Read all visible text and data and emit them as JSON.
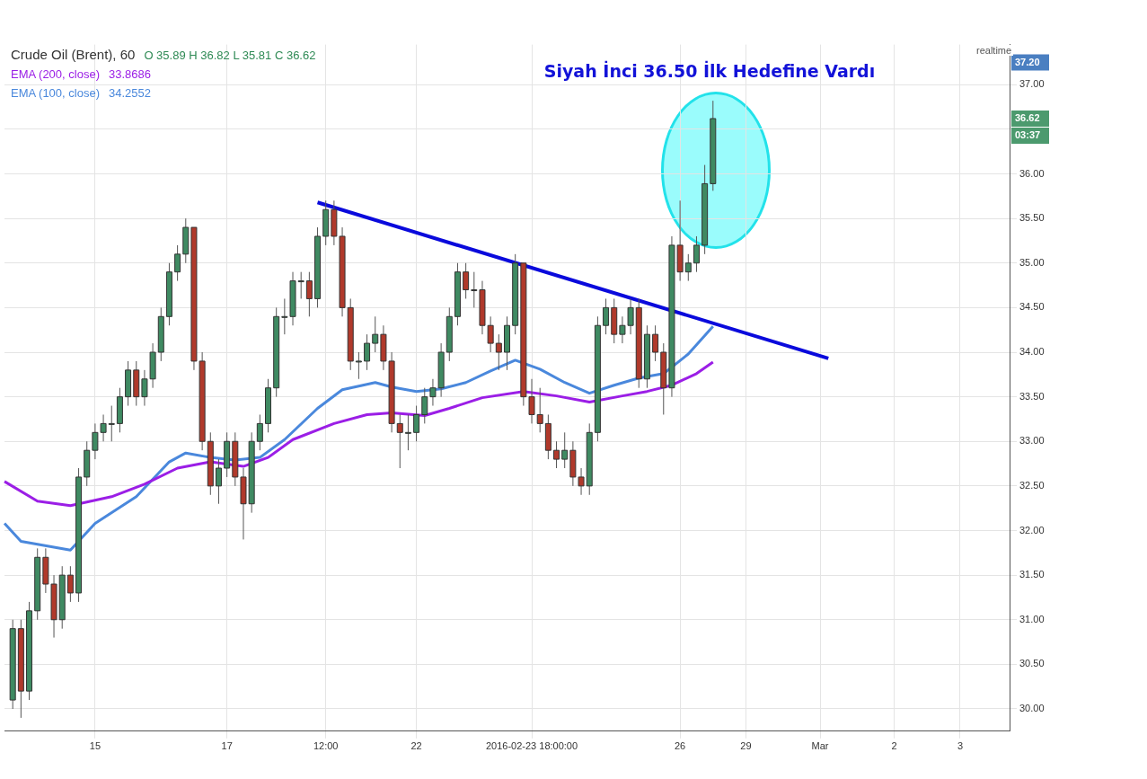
{
  "chart_data": {
    "type": "candlestick",
    "title": "Siyah İnci 36.50 İlk Hedefine Vardı",
    "subtitle": "Crude Oil (Brent), 60",
    "categories": [
      null,
      null,
      null,
      null,
      null,
      null,
      null,
      null,
      null,
      null,
      null,
      "15",
      null,
      null,
      null,
      null,
      null,
      null,
      null,
      null,
      null,
      null,
      null,
      null,
      null,
      null,
      null,
      "17",
      null,
      null,
      null,
      null,
      null,
      null,
      null,
      null,
      null,
      null,
      null,
      "12:00",
      null,
      null,
      null,
      null,
      null,
      null,
      null,
      null,
      null,
      null,
      "22",
      null,
      null,
      null,
      null,
      null,
      null,
      null,
      null,
      null,
      null,
      null,
      null,
      null,
      "2016-02-23 18:00:00",
      null,
      null,
      null,
      null,
      null,
      null,
      null,
      null,
      null,
      null,
      null,
      null,
      null,
      null,
      null,
      null,
      null,
      "26",
      null,
      null,
      null,
      null,
      null,
      null,
      null,
      "29",
      null,
      null,
      null,
      null,
      null,
      null,
      null,
      null,
      "Mar",
      null,
      null,
      null,
      null,
      null,
      null,
      null,
      null,
      "2",
      null,
      null,
      null,
      null,
      null,
      null,
      null,
      "3",
      null,
      null,
      null,
      null,
      null,
      null
    ],
    "ohlc": [
      null,
      [
        30.1,
        31.0,
        30.0,
        30.9
      ],
      [
        30.9,
        31.0,
        29.9,
        30.2
      ],
      [
        30.2,
        31.2,
        30.1,
        31.1
      ],
      [
        31.1,
        31.8,
        31.0,
        31.7
      ],
      [
        31.7,
        31.8,
        31.3,
        31.4
      ],
      [
        31.4,
        31.5,
        30.8,
        31.0
      ],
      [
        31.0,
        31.6,
        30.9,
        31.5
      ],
      [
        31.5,
        31.6,
        31.2,
        31.3
      ],
      [
        31.3,
        32.7,
        31.2,
        32.6
      ],
      [
        32.6,
        33.0,
        32.5,
        32.9
      ],
      [
        32.9,
        33.2,
        32.8,
        33.1
      ],
      [
        33.1,
        33.3,
        33.0,
        33.2
      ],
      [
        33.2,
        33.4,
        33.0,
        33.2
      ],
      [
        33.2,
        33.6,
        33.1,
        33.5
      ],
      [
        33.5,
        33.9,
        33.4,
        33.8
      ],
      [
        33.8,
        33.9,
        33.4,
        33.5
      ],
      [
        33.5,
        33.8,
        33.4,
        33.7
      ],
      [
        33.7,
        34.1,
        33.6,
        34.0
      ],
      [
        34.0,
        34.5,
        33.9,
        34.4
      ],
      [
        34.4,
        35.0,
        34.3,
        34.9
      ],
      [
        34.9,
        35.2,
        34.8,
        35.1
      ],
      [
        35.1,
        35.5,
        35.0,
        35.4
      ],
      [
        35.4,
        35.4,
        33.8,
        33.9
      ],
      [
        33.9,
        34.0,
        32.9,
        33.0
      ],
      [
        33.0,
        33.1,
        32.4,
        32.5
      ],
      [
        32.5,
        32.8,
        32.3,
        32.7
      ],
      [
        32.7,
        33.1,
        32.6,
        33.0
      ],
      [
        33.0,
        33.1,
        32.5,
        32.6
      ],
      [
        32.6,
        32.7,
        31.9,
        32.3
      ],
      [
        32.3,
        33.1,
        32.2,
        33.0
      ],
      [
        33.0,
        33.3,
        32.9,
        33.2
      ],
      [
        33.2,
        33.7,
        33.1,
        33.6
      ],
      [
        33.6,
        34.5,
        33.5,
        34.4
      ],
      [
        34.4,
        34.6,
        34.2,
        34.4
      ],
      [
        34.4,
        34.9,
        34.3,
        34.8
      ],
      [
        34.8,
        34.9,
        34.6,
        34.8
      ],
      [
        34.8,
        34.9,
        34.4,
        34.6
      ],
      [
        34.6,
        35.4,
        34.5,
        35.3
      ],
      [
        35.3,
        35.7,
        35.2,
        35.6
      ],
      [
        35.6,
        35.7,
        35.2,
        35.3
      ],
      [
        35.3,
        35.4,
        34.4,
        34.5
      ],
      [
        34.5,
        34.6,
        33.8,
        33.9
      ],
      [
        33.9,
        34.0,
        33.7,
        33.9
      ],
      [
        33.9,
        34.2,
        33.8,
        34.1
      ],
      [
        34.1,
        34.4,
        34.0,
        34.2
      ],
      [
        34.2,
        34.3,
        33.8,
        33.9
      ],
      [
        33.9,
        34.0,
        33.1,
        33.2
      ],
      [
        33.2,
        33.3,
        32.7,
        33.1
      ],
      [
        33.1,
        33.3,
        32.9,
        33.1
      ],
      [
        33.1,
        33.4,
        33.0,
        33.3
      ],
      [
        33.3,
        33.6,
        33.2,
        33.5
      ],
      [
        33.5,
        33.7,
        33.4,
        33.6
      ],
      [
        33.6,
        34.1,
        33.5,
        34.0
      ],
      [
        34.0,
        34.5,
        33.9,
        34.4
      ],
      [
        34.4,
        35.0,
        34.3,
        34.9
      ],
      [
        34.9,
        35.0,
        34.6,
        34.7
      ],
      [
        34.7,
        34.9,
        34.5,
        34.7
      ],
      [
        34.7,
        34.8,
        34.2,
        34.3
      ],
      [
        34.3,
        34.4,
        34.0,
        34.1
      ],
      [
        34.1,
        34.2,
        33.8,
        34.0
      ],
      [
        34.0,
        34.4,
        33.8,
        34.3
      ],
      [
        34.3,
        35.1,
        34.2,
        35.0
      ],
      [
        35.0,
        35.0,
        33.4,
        33.5
      ],
      [
        33.5,
        33.7,
        33.2,
        33.3
      ],
      [
        33.3,
        33.6,
        33.1,
        33.2
      ],
      [
        33.2,
        33.3,
        32.8,
        32.9
      ],
      [
        32.9,
        33.0,
        32.7,
        32.8
      ],
      [
        32.8,
        33.1,
        32.7,
        32.9
      ],
      [
        32.9,
        33.0,
        32.5,
        32.6
      ],
      [
        32.6,
        32.7,
        32.4,
        32.5
      ],
      [
        32.5,
        33.2,
        32.4,
        33.1
      ],
      [
        33.1,
        34.4,
        33.0,
        34.3
      ],
      [
        34.3,
        34.6,
        34.2,
        34.5
      ],
      [
        34.5,
        34.6,
        34.1,
        34.2
      ],
      [
        34.2,
        34.4,
        34.1,
        34.3
      ],
      [
        34.3,
        34.6,
        34.2,
        34.5
      ],
      [
        34.5,
        34.6,
        33.6,
        33.7
      ],
      [
        33.7,
        34.3,
        33.6,
        34.2
      ],
      [
        34.2,
        34.3,
        33.9,
        34.0
      ],
      [
        34.0,
        34.1,
        33.3,
        33.6
      ],
      [
        33.6,
        35.3,
        33.5,
        35.2
      ],
      [
        35.2,
        35.7,
        34.8,
        34.9
      ],
      [
        34.9,
        35.1,
        34.8,
        35.0
      ],
      [
        35.0,
        35.3,
        34.9,
        35.2
      ],
      [
        35.2,
        36.1,
        35.1,
        35.89
      ],
      [
        35.89,
        36.82,
        35.81,
        36.62
      ],
      null,
      null,
      null,
      null,
      null,
      null,
      null,
      null,
      null,
      null,
      null,
      null,
      null,
      null,
      null,
      null,
      null,
      null,
      null,
      null,
      null,
      null,
      null,
      null,
      null,
      null,
      null,
      null,
      null,
      null,
      null,
      null,
      null,
      null,
      null,
      null
    ],
    "series": [
      {
        "name": "EMA (200, close)",
        "type": "line",
        "color": "#9b1ee6",
        "values": [
          32.55,
          null,
          null,
          null,
          32.33,
          null,
          null,
          null,
          32.28,
          null,
          null,
          null,
          null,
          32.38,
          null,
          null,
          null,
          32.52,
          null,
          null,
          null,
          32.7,
          null,
          null,
          null,
          32.77,
          null,
          null,
          null,
          32.72,
          null,
          null,
          32.82,
          null,
          null,
          33.02,
          null,
          null,
          null,
          null,
          33.2,
          null,
          null,
          null,
          33.3,
          null,
          null,
          33.32,
          null,
          null,
          null,
          33.29,
          null,
          null,
          33.37,
          null,
          null,
          null,
          33.49,
          null,
          null,
          null,
          null,
          33.56,
          null,
          null,
          null,
          33.51,
          null,
          null,
          null,
          33.44,
          null,
          null,
          null,
          33.51,
          null,
          null,
          33.56,
          null,
          null,
          33.63,
          null,
          null,
          33.76,
          null,
          33.89,
          null,
          null,
          null,
          null,
          null,
          null,
          null,
          null,
          null,
          null,
          null,
          null,
          null,
          null,
          null,
          null,
          null,
          null,
          null,
          null,
          null,
          null,
          null,
          null,
          null,
          null,
          null,
          null,
          null,
          null,
          null,
          null,
          null,
          null,
          null,
          null
        ]
      },
      {
        "name": "EMA (100, close)",
        "type": "line",
        "color": "#4a88dc",
        "values": [
          32.08,
          null,
          31.88,
          null,
          null,
          null,
          null,
          null,
          31.78,
          null,
          null,
          32.08,
          null,
          null,
          null,
          null,
          32.38,
          null,
          null,
          null,
          32.77,
          null,
          32.87,
          null,
          null,
          32.82,
          null,
          null,
          32.79,
          null,
          null,
          32.82,
          null,
          null,
          33.02,
          null,
          null,
          null,
          33.37,
          null,
          null,
          33.58,
          null,
          null,
          null,
          33.66,
          null,
          33.61,
          null,
          null,
          33.56,
          null,
          null,
          33.59,
          null,
          null,
          33.66,
          null,
          null,
          33.79,
          null,
          null,
          33.91,
          null,
          null,
          33.81,
          null,
          null,
          33.66,
          null,
          null,
          33.54,
          null,
          null,
          33.63,
          null,
          null,
          33.71,
          null,
          null,
          33.76,
          null,
          null,
          33.98,
          null,
          null,
          34.29,
          null,
          null,
          null,
          null,
          null,
          null,
          null,
          null,
          null,
          null,
          null,
          null,
          null,
          null,
          null,
          null,
          null,
          null,
          null,
          null,
          null,
          null,
          null,
          null,
          null,
          null,
          null,
          null,
          null,
          null,
          null,
          null,
          null,
          null,
          null,
          null
        ]
      },
      {
        "type": "line",
        "color": "#0a0adc",
        "values": [
          null,
          null,
          null,
          null,
          null,
          null,
          null,
          null,
          null,
          null,
          null,
          null,
          null,
          null,
          null,
          null,
          null,
          null,
          null,
          null,
          null,
          null,
          null,
          null,
          null,
          null,
          null,
          null,
          null,
          null,
          null,
          null,
          null,
          null,
          null,
          null,
          null,
          null,
          35.68,
          null,
          null,
          null,
          null,
          null,
          null,
          null,
          null,
          null,
          null,
          null,
          null,
          null,
          null,
          null,
          null,
          null,
          null,
          null,
          null,
          null,
          null,
          null,
          null,
          null,
          null,
          null,
          null,
          null,
          null,
          null,
          null,
          null,
          null,
          null,
          null,
          null,
          null,
          null,
          null,
          null,
          null,
          null,
          null,
          null,
          null,
          null,
          null,
          null,
          null,
          null,
          null,
          null,
          null,
          null,
          null,
          null,
          null,
          null,
          null,
          null,
          33.93,
          null,
          null,
          null,
          null,
          null,
          null,
          null,
          null,
          null,
          null,
          null,
          null,
          null,
          null,
          null,
          null,
          null,
          null,
          null,
          null,
          null,
          null
        ]
      }
    ],
    "ylim": [
      29.75,
      37.45
    ],
    "yticks": [
      {
        "value": 30,
        "label": "30.00"
      },
      {
        "value": 30.5,
        "label": "30.50"
      },
      {
        "value": 31,
        "label": "31.00"
      },
      {
        "value": 31.5,
        "label": "31.50"
      },
      {
        "value": 32,
        "label": "32.00"
      },
      {
        "value": 32.5,
        "label": "32.50"
      },
      {
        "value": 33,
        "label": "33.00"
      },
      {
        "value": 33.5,
        "label": "33.50"
      },
      {
        "value": 34,
        "label": "34.00"
      },
      {
        "value": 34.5,
        "label": "34.50"
      },
      {
        "value": 35,
        "label": "35.00"
      },
      {
        "value": 35.5,
        "label": "35.50"
      },
      {
        "value": 36,
        "label": "36.00"
      },
      {
        "value": 36.5,
        "label": null
      },
      {
        "value": 37,
        "label": "37.00"
      }
    ],
    "grid": true,
    "legend": "top left",
    "annotations": [
      "O 35.89 H 36.82 L 35.81 C 36.62",
      "33.8686",
      "34.2552",
      "realtime",
      "37.20",
      "36.62",
      "03:37"
    ]
  }
}
